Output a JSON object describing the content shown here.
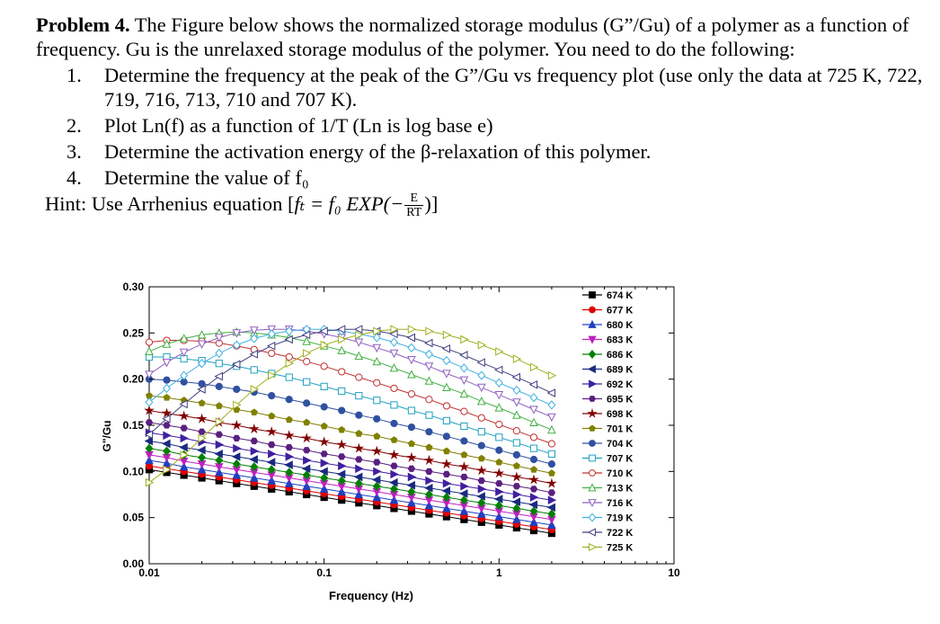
{
  "problem": {
    "heading": "Problem 4.",
    "intro": "The Figure below shows the normalized storage modulus (G”/Gu) of a polymer as a function of frequency. Gu is the unrelaxed storage modulus of the polymer. You need to do the following:",
    "steps": [
      {
        "num": "1.",
        "text": "Determine the frequency at the peak of the G”/Gu vs frequency plot (use only the data at 725 K, 722, 719, 716, 713, 710 and 707 K)."
      },
      {
        "num": "2.",
        "text": "Plot Ln(f) as a function of 1/T (Ln is log base e)"
      },
      {
        "num": "3.",
        "text": "Determine the activation energy of the β-relaxation of this polymer."
      },
      {
        "num": "4.",
        "text": "Determine the value of f₀"
      }
    ],
    "hint_label": "Hint: Use Arrhenius equation [",
    "hint_formula": "fₜ = f₀ EXP(−",
    "hint_num": "E",
    "hint_den": "RT",
    "hint_close": ")]"
  },
  "chart_data": {
    "type": "line",
    "x_scale": "log",
    "xlim": [
      0.01,
      10
    ],
    "ylim": [
      0.0,
      0.3
    ],
    "xlabel": "Frequency (Hz)",
    "ylabel": "G\"/Gu",
    "x_ticks": [
      "0.01",
      "0.1",
      "1",
      "10"
    ],
    "y_ticks": [
      "0.00",
      "0.05",
      "0.10",
      "0.15",
      "0.20",
      "0.25",
      "0.30"
    ],
    "legend_position": "top-right",
    "x": [
      0.01,
      0.0126,
      0.0158,
      0.02,
      0.0251,
      0.0316,
      0.0398,
      0.0501,
      0.0631,
      0.0794,
      0.1,
      0.126,
      0.158,
      0.2,
      0.251,
      0.316,
      0.398,
      0.501,
      0.631,
      0.794,
      1.0,
      1.26,
      1.58,
      2.0
    ],
    "series": [
      {
        "name": "674 K",
        "color": "#000000",
        "marker": "square-filled",
        "values": [
          0.102,
          0.099,
          0.096,
          0.093,
          0.09,
          0.087,
          0.084,
          0.081,
          0.078,
          0.075,
          0.072,
          0.069,
          0.066,
          0.063,
          0.06,
          0.057,
          0.054,
          0.051,
          0.048,
          0.045,
          0.042,
          0.039,
          0.036,
          0.033
        ]
      },
      {
        "name": "677 K",
        "color": "#e00000",
        "marker": "circle-filled",
        "values": [
          0.106,
          0.103,
          0.1,
          0.097,
          0.094,
          0.091,
          0.088,
          0.085,
          0.082,
          0.079,
          0.076,
          0.073,
          0.07,
          0.067,
          0.064,
          0.061,
          0.058,
          0.055,
          0.052,
          0.049,
          0.046,
          0.043,
          0.04,
          0.037
        ]
      },
      {
        "name": "680 K",
        "color": "#2040c0",
        "marker": "triangle-up-filled",
        "values": [
          0.112,
          0.109,
          0.105,
          0.102,
          0.099,
          0.096,
          0.093,
          0.09,
          0.087,
          0.084,
          0.081,
          0.078,
          0.075,
          0.072,
          0.069,
          0.066,
          0.063,
          0.06,
          0.057,
          0.054,
          0.051,
          0.048,
          0.045,
          0.042
        ]
      },
      {
        "name": "683 K",
        "color": "#c020c0",
        "marker": "triangle-down-filled",
        "values": [
          0.118,
          0.115,
          0.111,
          0.108,
          0.105,
          0.102,
          0.099,
          0.096,
          0.093,
          0.09,
          0.087,
          0.084,
          0.081,
          0.078,
          0.075,
          0.072,
          0.069,
          0.066,
          0.063,
          0.06,
          0.057,
          0.054,
          0.051,
          0.048
        ]
      },
      {
        "name": "686 K",
        "color": "#008000",
        "marker": "diamond-filled",
        "values": [
          0.125,
          0.122,
          0.118,
          0.115,
          0.112,
          0.108,
          0.105,
          0.102,
          0.099,
          0.096,
          0.093,
          0.09,
          0.087,
          0.084,
          0.081,
          0.078,
          0.075,
          0.072,
          0.069,
          0.066,
          0.063,
          0.06,
          0.057,
          0.054
        ]
      },
      {
        "name": "689 K",
        "color": "#1a2a80",
        "marker": "triangle-left-filled",
        "values": [
          0.133,
          0.13,
          0.126,
          0.123,
          0.119,
          0.116,
          0.113,
          0.11,
          0.107,
          0.103,
          0.1,
          0.097,
          0.094,
          0.091,
          0.088,
          0.085,
          0.082,
          0.079,
          0.076,
          0.073,
          0.07,
          0.067,
          0.064,
          0.061
        ]
      },
      {
        "name": "692 K",
        "color": "#4020a0",
        "marker": "triangle-right-filled",
        "values": [
          0.142,
          0.139,
          0.136,
          0.132,
          0.129,
          0.125,
          0.122,
          0.119,
          0.116,
          0.112,
          0.109,
          0.106,
          0.103,
          0.1,
          0.097,
          0.094,
          0.09,
          0.087,
          0.084,
          0.081,
          0.078,
          0.075,
          0.072,
          0.069
        ]
      },
      {
        "name": "695 K",
        "color": "#5a2080",
        "marker": "hexagon-filled",
        "values": [
          0.153,
          0.15,
          0.147,
          0.143,
          0.14,
          0.136,
          0.133,
          0.129,
          0.126,
          0.123,
          0.119,
          0.116,
          0.113,
          0.11,
          0.106,
          0.103,
          0.1,
          0.097,
          0.094,
          0.09,
          0.087,
          0.084,
          0.081,
          0.077
        ]
      },
      {
        "name": "698 K",
        "color": "#800000",
        "marker": "star-filled",
        "values": [
          0.166,
          0.163,
          0.16,
          0.157,
          0.153,
          0.15,
          0.146,
          0.143,
          0.139,
          0.136,
          0.132,
          0.129,
          0.125,
          0.122,
          0.118,
          0.115,
          0.112,
          0.108,
          0.105,
          0.101,
          0.098,
          0.094,
          0.091,
          0.087
        ]
      },
      {
        "name": "701 K",
        "color": "#808000",
        "marker": "pentagon-filled",
        "values": [
          0.182,
          0.18,
          0.177,
          0.174,
          0.171,
          0.167,
          0.164,
          0.16,
          0.156,
          0.153,
          0.149,
          0.145,
          0.141,
          0.138,
          0.134,
          0.13,
          0.126,
          0.122,
          0.118,
          0.114,
          0.11,
          0.106,
          0.102,
          0.098
        ]
      },
      {
        "name": "704 K",
        "color": "#3050a0",
        "marker": "circle-filled",
        "values": [
          0.2,
          0.199,
          0.197,
          0.195,
          0.192,
          0.189,
          0.186,
          0.182,
          0.178,
          0.174,
          0.17,
          0.166,
          0.161,
          0.157,
          0.152,
          0.148,
          0.143,
          0.138,
          0.133,
          0.128,
          0.123,
          0.118,
          0.113,
          0.108
        ]
      },
      {
        "name": "707 K",
        "color": "#20a0c0",
        "marker": "square-open",
        "values": [
          0.224,
          0.224,
          0.222,
          0.22,
          0.217,
          0.214,
          0.21,
          0.206,
          0.202,
          0.197,
          0.192,
          0.187,
          0.182,
          0.177,
          0.172,
          0.166,
          0.161,
          0.155,
          0.149,
          0.143,
          0.137,
          0.131,
          0.125,
          0.119
        ]
      },
      {
        "name": "710 K",
        "color": "#c03030",
        "marker": "circle-open",
        "values": [
          0.24,
          0.242,
          0.242,
          0.241,
          0.239,
          0.236,
          0.232,
          0.228,
          0.224,
          0.219,
          0.214,
          0.208,
          0.202,
          0.196,
          0.19,
          0.184,
          0.178,
          0.171,
          0.165,
          0.158,
          0.151,
          0.144,
          0.137,
          0.13
        ]
      },
      {
        "name": "713 K",
        "color": "#40b040",
        "marker": "triangle-up-open",
        "values": [
          0.23,
          0.238,
          0.244,
          0.248,
          0.25,
          0.251,
          0.25,
          0.248,
          0.245,
          0.241,
          0.236,
          0.231,
          0.225,
          0.219,
          0.212,
          0.205,
          0.198,
          0.191,
          0.184,
          0.176,
          0.169,
          0.161,
          0.153,
          0.145
        ]
      },
      {
        "name": "716 K",
        "color": "#9060c0",
        "marker": "triangle-down-open",
        "values": [
          0.205,
          0.218,
          0.229,
          0.238,
          0.245,
          0.25,
          0.253,
          0.254,
          0.254,
          0.252,
          0.249,
          0.245,
          0.24,
          0.234,
          0.228,
          0.221,
          0.214,
          0.206,
          0.199,
          0.191,
          0.183,
          0.175,
          0.167,
          0.159
        ]
      },
      {
        "name": "719 K",
        "color": "#40b0e0",
        "marker": "diamond-open",
        "values": [
          0.175,
          0.19,
          0.204,
          0.217,
          0.228,
          0.237,
          0.244,
          0.249,
          0.252,
          0.254,
          0.254,
          0.252,
          0.249,
          0.245,
          0.24,
          0.234,
          0.227,
          0.22,
          0.212,
          0.204,
          0.196,
          0.188,
          0.18,
          0.172
        ]
      },
      {
        "name": "722 K",
        "color": "#404080",
        "marker": "triangle-left-open",
        "values": [
          0.14,
          0.157,
          0.173,
          0.189,
          0.203,
          0.216,
          0.227,
          0.236,
          0.243,
          0.248,
          0.252,
          0.254,
          0.254,
          0.252,
          0.249,
          0.245,
          0.239,
          0.233,
          0.226,
          0.218,
          0.21,
          0.202,
          0.194,
          0.185
        ]
      },
      {
        "name": "725 K",
        "color": "#a0b020",
        "marker": "triangle-right-open",
        "values": [
          0.088,
          0.102,
          0.118,
          0.136,
          0.154,
          0.172,
          0.189,
          0.204,
          0.217,
          0.228,
          0.237,
          0.243,
          0.248,
          0.252,
          0.254,
          0.254,
          0.252,
          0.248,
          0.243,
          0.237,
          0.23,
          0.222,
          0.213,
          0.204
        ]
      }
    ]
  }
}
